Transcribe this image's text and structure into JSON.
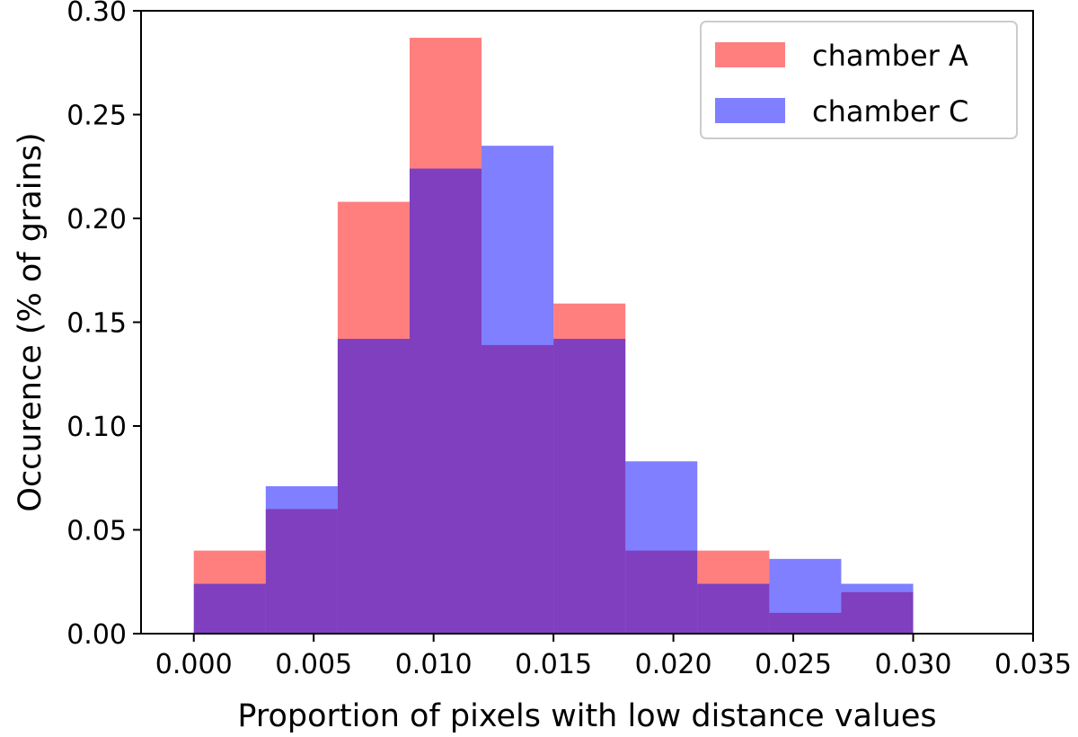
{
  "chart_data": {
    "type": "bar",
    "subtype": "overlapping-histogram",
    "title": "",
    "xlabel": "Proportion of pixels with low distance values",
    "ylabel": "Occurence (% of grains)",
    "xlim": [
      -0.0022,
      0.035
    ],
    "ylim": [
      0.0,
      0.3
    ],
    "xticks": [
      0.0,
      0.005,
      0.01,
      0.015,
      0.02,
      0.025,
      0.03,
      0.035
    ],
    "xtick_labels": [
      "0.000",
      "0.005",
      "0.010",
      "0.015",
      "0.020",
      "0.025",
      "0.030",
      "0.035"
    ],
    "yticks": [
      0.0,
      0.05,
      0.1,
      0.15,
      0.2,
      0.25,
      0.3
    ],
    "ytick_labels": [
      "0.00",
      "0.05",
      "0.10",
      "0.15",
      "0.20",
      "0.25",
      "0.30"
    ],
    "legend_position": "top-right",
    "series": [
      {
        "name": "chamber A",
        "color": "#ff0000",
        "opacity": 0.5,
        "bins": [
          {
            "x0": -0.003,
            "x1": 0.0,
            "value": 0.0
          },
          {
            "x0": 0.0,
            "x1": 0.003,
            "value": 0.04
          },
          {
            "x0": 0.003,
            "x1": 0.006,
            "value": 0.06
          },
          {
            "x0": 0.006,
            "x1": 0.009,
            "value": 0.208
          },
          {
            "x0": 0.009,
            "x1": 0.012,
            "value": 0.287
          },
          {
            "x0": 0.012,
            "x1": 0.015,
            "value": 0.139
          },
          {
            "x0": 0.015,
            "x1": 0.018,
            "value": 0.159
          },
          {
            "x0": 0.018,
            "x1": 0.021,
            "value": 0.04
          },
          {
            "x0": 0.021,
            "x1": 0.024,
            "value": 0.04
          },
          {
            "x0": 0.024,
            "x1": 0.027,
            "value": 0.01
          },
          {
            "x0": 0.027,
            "x1": 0.03,
            "value": 0.02
          }
        ]
      },
      {
        "name": "chamber C",
        "color": "#0000ff",
        "opacity": 0.5,
        "bins": [
          {
            "x0": -0.003,
            "x1": 0.0,
            "value": 0.0
          },
          {
            "x0": 0.0,
            "x1": 0.003,
            "value": 0.024
          },
          {
            "x0": 0.003,
            "x1": 0.006,
            "value": 0.071
          },
          {
            "x0": 0.006,
            "x1": 0.009,
            "value": 0.142
          },
          {
            "x0": 0.009,
            "x1": 0.012,
            "value": 0.224
          },
          {
            "x0": 0.012,
            "x1": 0.015,
            "value": 0.235
          },
          {
            "x0": 0.015,
            "x1": 0.018,
            "value": 0.142
          },
          {
            "x0": 0.018,
            "x1": 0.021,
            "value": 0.083
          },
          {
            "x0": 0.021,
            "x1": 0.024,
            "value": 0.024
          },
          {
            "x0": 0.024,
            "x1": 0.027,
            "value": 0.036
          },
          {
            "x0": 0.027,
            "x1": 0.03,
            "value": 0.024
          }
        ]
      }
    ]
  }
}
